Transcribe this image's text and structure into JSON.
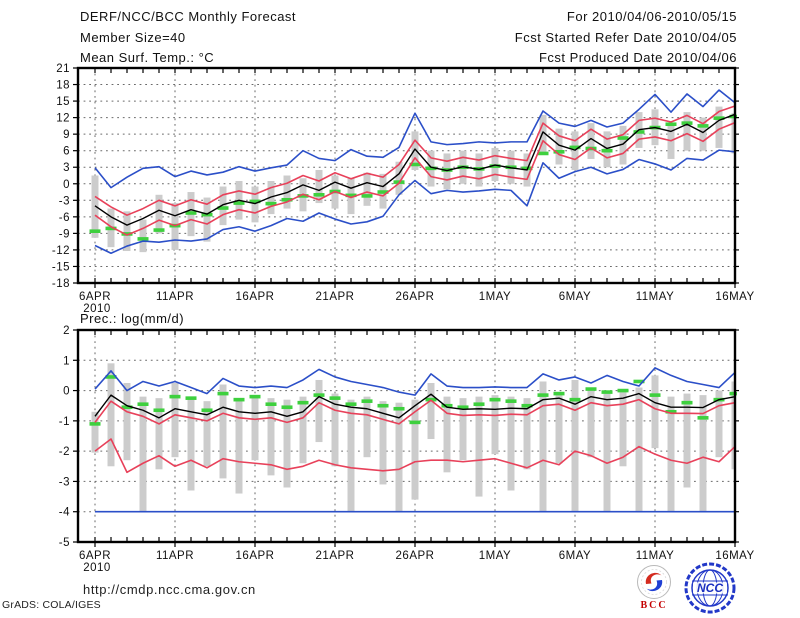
{
  "header": {
    "title": "DERF/NCC/BCC Monthly Forecast",
    "member_size": "Member Size=40",
    "temp_label": "Mean Surf. Temp.: °C",
    "for_range": "For 2010/04/06-2010/05/15",
    "fcst_started": "Fcst Started Refer Date 2010/04/05",
    "fcst_produced": "Fcst Produced Date 2010/04/06"
  },
  "precip_label": "Prec.: log(mm/d)",
  "footer": {
    "url": "http://cmdp.ncc.cma.gov.cn",
    "credit": "GrADS: COLA/IGES",
    "bcc_logo_text": "BCC",
    "ncc_logo_text": "NCC"
  },
  "colors": {
    "blue": "#2b4fc8",
    "red": "#e8415a",
    "green": "#3ed03e",
    "black": "#000000",
    "bar_gray": "#cccccc",
    "grid_gray": "#6a6a6a"
  },
  "chart_data": [
    {
      "type": "line",
      "name": "temperature-chart",
      "title": "Mean Surf. Temp.: °C",
      "x_sublabel": "2010",
      "n_points": 41,
      "x_tick_days": [
        0,
        5,
        10,
        15,
        20,
        25,
        30,
        35,
        40
      ],
      "x_tick_labels": [
        "6APR",
        "11APR",
        "16APR",
        "21APR",
        "26APR",
        "1MAY",
        "6MAY",
        "11MAY",
        "16MAY"
      ],
      "ylim": [
        -18,
        21
      ],
      "y_tick_values": [
        21,
        18,
        15,
        12,
        9,
        6,
        3,
        0,
        -3,
        -6,
        -9,
        -12,
        -15,
        -18
      ],
      "y_tick_labels": [
        "21",
        "18",
        "15",
        "12",
        "9",
        "6",
        "3",
        "0",
        "-3",
        "-6",
        "-9",
        "-12",
        "-15",
        "-18"
      ],
      "series": [
        {
          "name": "ensemble-max",
          "color": "blue",
          "values": [
            2.9,
            -0.7,
            1.2,
            2.8,
            3.1,
            1.3,
            2.3,
            1.6,
            2.1,
            3.1,
            2.3,
            2.9,
            3.4,
            6.0,
            4.6,
            4.2,
            6.2,
            5.0,
            4.8,
            6.6,
            12.8,
            7.6,
            7.1,
            7.3,
            7.6,
            7.4,
            7.6,
            7.6,
            13.2,
            11.0,
            10.4,
            11.5,
            10.3,
            11.0,
            13.5,
            16.2,
            13.0,
            16.3,
            14.0,
            17.0,
            14.7
          ]
        },
        {
          "name": "ensemble-mean-plus-spread",
          "color": "red",
          "values": [
            -2.3,
            -4.2,
            -5.7,
            -4.5,
            -3.0,
            -4.0,
            -2.9,
            -3.7,
            -2.0,
            -1.3,
            -1.9,
            -0.7,
            0.1,
            1.5,
            0.5,
            2.0,
            0.9,
            1.9,
            1.2,
            3.5,
            7.9,
            4.7,
            4.1,
            4.8,
            4.3,
            5.1,
            4.6,
            4.2,
            11.0,
            8.7,
            7.8,
            9.9,
            8.1,
            8.9,
            11.5,
            11.9,
            11.2,
            12.4,
            10.9,
            13.1,
            14.1
          ]
        },
        {
          "name": "ensemble-mean",
          "color": "black",
          "values": [
            -4.0,
            -6.0,
            -7.5,
            -6.3,
            -4.8,
            -5.8,
            -4.7,
            -5.5,
            -3.8,
            -3.0,
            -3.6,
            -2.4,
            -1.6,
            -0.2,
            -1.2,
            0.3,
            -0.8,
            0.2,
            -0.5,
            1.8,
            6.3,
            3.0,
            2.4,
            3.1,
            2.6,
            3.4,
            2.9,
            2.5,
            9.4,
            7.0,
            6.1,
            8.2,
            6.4,
            7.2,
            9.8,
            10.2,
            9.5,
            10.8,
            9.3,
            11.5,
            12.6
          ]
        },
        {
          "name": "ensemble-mean-minus-spread",
          "color": "red",
          "values": [
            -5.7,
            -7.8,
            -9.3,
            -8.1,
            -6.6,
            -7.6,
            -6.5,
            -7.3,
            -5.6,
            -4.7,
            -5.3,
            -4.1,
            -3.3,
            -1.9,
            -2.9,
            -1.4,
            -2.5,
            -1.5,
            -2.2,
            0.1,
            4.7,
            1.3,
            0.7,
            1.4,
            0.9,
            1.7,
            1.2,
            0.8,
            7.8,
            5.3,
            4.4,
            6.5,
            4.7,
            5.5,
            8.1,
            8.5,
            7.8,
            9.1,
            7.7,
            9.9,
            11.1
          ]
        },
        {
          "name": "ensemble-min",
          "color": "blue",
          "values": [
            -11.2,
            -12.6,
            -11.3,
            -10.4,
            -10.6,
            -10.2,
            -10.4,
            -10.0,
            -8.3,
            -7.8,
            -8.6,
            -7.6,
            -6.3,
            -6.8,
            -5.3,
            -6.4,
            -7.3,
            -6.9,
            -5.9,
            -2.0,
            0.6,
            -1.8,
            -1.2,
            -1.5,
            -1.3,
            -1.0,
            -1.2,
            -4.0,
            3.8,
            1.0,
            2.2,
            3.0,
            1.8,
            2.6,
            4.4,
            3.6,
            2.5,
            4.6,
            4.3,
            6.1,
            5.8
          ]
        }
      ],
      "bars": {
        "name": "member-spread-bar",
        "lo": [
          -9.8,
          -11.5,
          -12.2,
          -12.4,
          -9.0,
          -12.0,
          -9.5,
          -10.5,
          -7.5,
          -6.5,
          -7.0,
          -5.5,
          -4.5,
          -5.0,
          -3.5,
          -4.5,
          -5.5,
          -4.0,
          -4.5,
          -2.0,
          2.5,
          -0.5,
          -1.0,
          0.0,
          -0.5,
          0.5,
          0.0,
          -0.5,
          5.5,
          3.5,
          2.5,
          4.5,
          3.0,
          3.5,
          6.5,
          7.0,
          4.5,
          6.0,
          6.0,
          6.5,
          5.5
        ],
        "hi": [
          1.5,
          -4.5,
          -5.0,
          -6.5,
          -2.0,
          -3.5,
          -1.5,
          -2.5,
          -0.5,
          0.5,
          -0.5,
          0.5,
          1.5,
          1.0,
          2.5,
          1.5,
          1.0,
          2.0,
          1.8,
          4.0,
          9.5,
          6.0,
          5.5,
          6.0,
          5.5,
          6.5,
          6.0,
          5.5,
          12.5,
          10.0,
          9.5,
          11.0,
          9.5,
          10.5,
          13.0,
          13.5,
          10.5,
          13.0,
          12.0,
          14.0,
          12.8
        ]
      },
      "dashes": {
        "name": "observation-dash",
        "values": [
          -8.6,
          -8.1,
          -9.1,
          -10.0,
          -8.4,
          -7.6,
          -5.3,
          -5.6,
          -4.4,
          -3.5,
          -3.2,
          -3.6,
          -2.9,
          -2.2,
          -2.0,
          -1.4,
          -2.1,
          -2.2,
          -1.5,
          0.3,
          3.5,
          2.8,
          2.5,
          3.0,
          2.7,
          3.2,
          3.0,
          2.8,
          5.5,
          5.8,
          6.6,
          6.4,
          6.0,
          8.3,
          9.4,
          10.2,
          10.8,
          11.0,
          10.5,
          11.9,
          12.2
        ]
      }
    },
    {
      "type": "line",
      "name": "precipitation-chart",
      "title": "Prec.: log(mm/d)",
      "x_sublabel": "2010",
      "n_points": 41,
      "x_tick_days": [
        0,
        5,
        10,
        15,
        20,
        25,
        30,
        35,
        40
      ],
      "x_tick_labels": [
        "6APR",
        "11APR",
        "16APR",
        "21APR",
        "26APR",
        "1MAY",
        "6MAY",
        "11MAY",
        "16MAY"
      ],
      "ylim": [
        -5,
        2
      ],
      "y_tick_values": [
        2,
        1,
        0,
        -1,
        -2,
        -3,
        -4,
        -5
      ],
      "y_tick_labels": [
        "2",
        "1",
        "0",
        "-1",
        "-2",
        "-3",
        "-4",
        "-5"
      ],
      "series": [
        {
          "name": "ensemble-max",
          "color": "blue",
          "values": [
            0.05,
            0.65,
            0.0,
            0.3,
            0.15,
            0.3,
            0.1,
            -0.1,
            0.4,
            0.15,
            0.1,
            0.15,
            0.1,
            0.35,
            0.7,
            0.45,
            0.3,
            0.2,
            0.1,
            -0.05,
            -0.15,
            0.55,
            0.15,
            0.1,
            0.1,
            0.12,
            0.1,
            0.1,
            0.55,
            0.35,
            0.45,
            0.25,
            0.5,
            0.3,
            0.15,
            0.75,
            0.5,
            0.3,
            0.2,
            0.1,
            0.6
          ]
        },
        {
          "name": "ensemble-mean-plus-spread",
          "color": "red",
          "values": [
            -1.05,
            -0.35,
            -0.7,
            -0.85,
            -1.1,
            -0.8,
            -0.9,
            -1.0,
            -0.75,
            -0.9,
            -0.95,
            -0.9,
            -1.05,
            -0.9,
            -0.4,
            -0.65,
            -0.75,
            -0.8,
            -0.95,
            -1.1,
            -0.7,
            -0.32,
            -0.75,
            -0.82,
            -0.8,
            -0.82,
            -0.78,
            -0.8,
            -0.5,
            -0.45,
            -0.65,
            -0.4,
            -0.5,
            -0.45,
            -0.3,
            -0.6,
            -0.75,
            -0.75,
            -0.76,
            -0.5,
            -0.4
          ]
        },
        {
          "name": "ensemble-mean",
          "color": "black",
          "values": [
            -0.85,
            -0.15,
            -0.5,
            -0.65,
            -0.9,
            -0.6,
            -0.7,
            -0.8,
            -0.55,
            -0.7,
            -0.75,
            -0.7,
            -0.85,
            -0.7,
            -0.2,
            -0.45,
            -0.55,
            -0.6,
            -0.75,
            -0.9,
            -0.5,
            -0.12,
            -0.55,
            -0.62,
            -0.6,
            -0.62,
            -0.58,
            -0.6,
            -0.3,
            -0.25,
            -0.45,
            -0.2,
            -0.3,
            -0.25,
            -0.1,
            -0.4,
            -0.55,
            -0.55,
            -0.56,
            -0.3,
            -0.2
          ]
        },
        {
          "name": "ensemble-mean-minus-spread",
          "color": "red",
          "values": [
            -2.0,
            -1.6,
            -2.7,
            -2.4,
            -2.15,
            -2.5,
            -2.3,
            -2.55,
            -2.25,
            -2.35,
            -2.4,
            -2.45,
            -2.6,
            -2.5,
            -2.3,
            -2.45,
            -2.55,
            -2.6,
            -2.65,
            -2.6,
            -2.35,
            -2.3,
            -2.3,
            -2.35,
            -2.3,
            -2.25,
            -2.4,
            -2.55,
            -2.3,
            -2.45,
            -2.0,
            -2.15,
            -2.4,
            -2.2,
            -1.85,
            -2.1,
            -2.3,
            -2.4,
            -2.2,
            -2.35,
            -1.85
          ]
        },
        {
          "name": "ensemble-min",
          "color": "blue",
          "values": [
            -4,
            -4,
            -4,
            -4,
            -4,
            -4,
            -4,
            -4,
            -4,
            -4,
            -4,
            -4,
            -4,
            -4,
            -4,
            -4,
            -4,
            -4,
            -4,
            -4,
            -4,
            -4,
            -4,
            -4,
            -4,
            -4,
            -4,
            -4,
            -4,
            -4,
            -4,
            -4,
            -4,
            -4,
            -4,
            -4,
            -4,
            -4,
            -4,
            -4,
            -4
          ]
        }
      ],
      "bars": {
        "name": "member-spread-bar",
        "lo": [
          -2.05,
          -2.5,
          -2.3,
          -4.0,
          -2.6,
          -2.2,
          -3.3,
          -2.5,
          -2.9,
          -3.4,
          -2.3,
          -2.8,
          -3.2,
          -2.4,
          -1.7,
          -2.5,
          -4.0,
          -2.2,
          -3.1,
          -4.0,
          -3.6,
          -1.6,
          -2.7,
          -2.3,
          -3.5,
          -2.1,
          -3.3,
          -2.6,
          -4.0,
          -2.4,
          -4.0,
          -2.2,
          -4.0,
          -2.5,
          -4.0,
          -1.9,
          -4.0,
          -3.2,
          -4.0,
          -2.2,
          -2.6
        ],
        "hi": [
          -0.7,
          0.9,
          0.25,
          -0.2,
          -0.25,
          0.25,
          -0.3,
          -0.35,
          0.2,
          -0.3,
          -0.2,
          -0.25,
          -0.3,
          -0.2,
          0.35,
          -0.1,
          -0.3,
          -0.2,
          -0.35,
          -0.4,
          -0.3,
          0.25,
          -0.2,
          -0.25,
          -0.2,
          -0.15,
          -0.2,
          -0.25,
          0.3,
          -0.1,
          0.35,
          0.1,
          -0.1,
          0.05,
          0.1,
          0.5,
          -0.2,
          -0.1,
          -0.15,
          0.0,
          0.3
        ]
      },
      "dashes": {
        "name": "observation-dash",
        "values": [
          -1.1,
          0.45,
          -0.55,
          -0.45,
          -0.65,
          -0.2,
          -0.25,
          -0.65,
          -0.1,
          -0.3,
          -0.2,
          -0.45,
          -0.55,
          -0.4,
          -0.15,
          -0.25,
          -0.45,
          -0.35,
          -0.5,
          -0.6,
          -1.05,
          -0.3,
          -0.5,
          -0.55,
          -0.45,
          -0.3,
          -0.35,
          -0.5,
          -0.15,
          -0.1,
          -0.3,
          0.05,
          -0.05,
          0.0,
          0.3,
          -0.15,
          -0.7,
          -0.4,
          -0.9,
          -0.3,
          -0.1
        ]
      }
    }
  ]
}
